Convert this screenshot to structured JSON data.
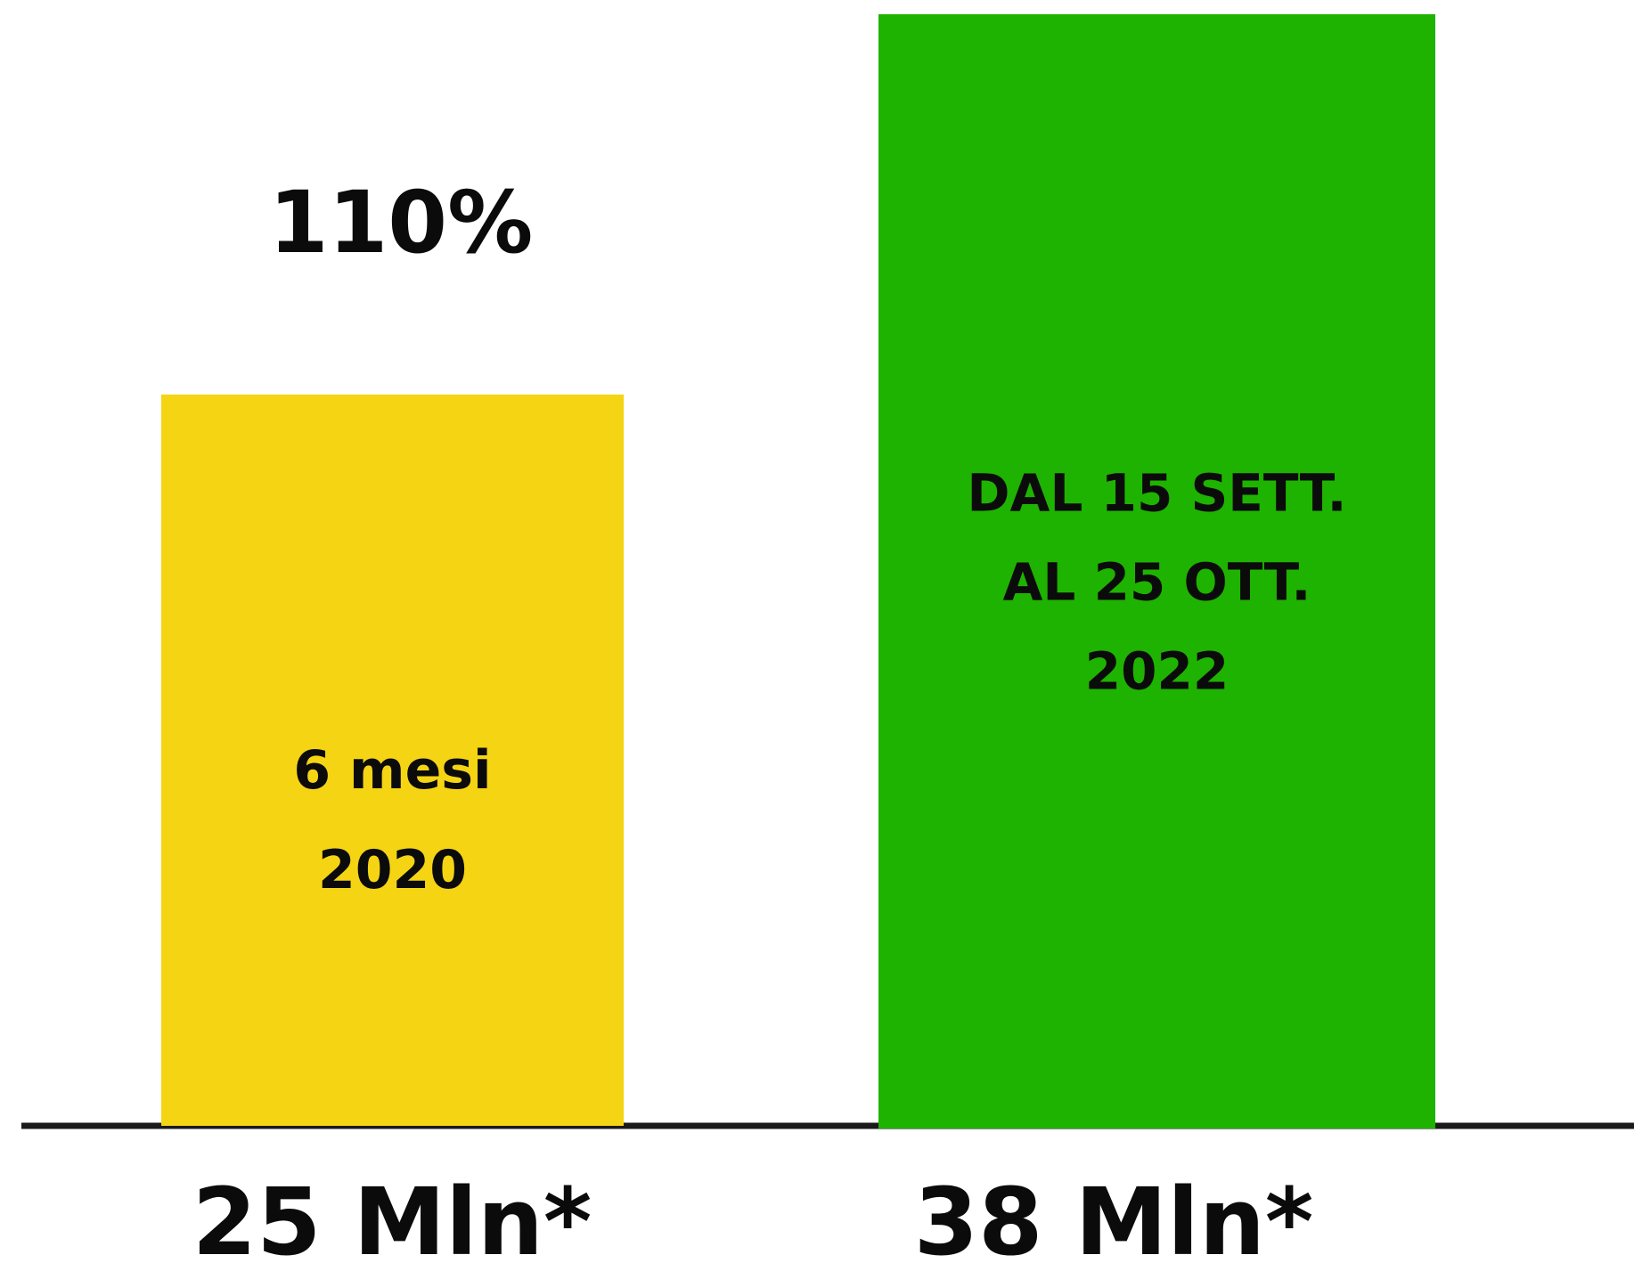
{
  "chart_data": {
    "type": "bar",
    "categories": [
      "25 Mln*",
      "38 Mln*"
    ],
    "values": [
      25,
      38
    ],
    "bar_labels": [
      [
        "6 mesi",
        "2020"
      ],
      [
        "DAL 15 SETT.",
        "AL 25 OTT.",
        "2022"
      ]
    ],
    "annotation": "110%",
    "colors": [
      "#f5d414",
      "#1eb300"
    ],
    "axis_color": "#1a1a1a",
    "ylim": [
      0,
      38
    ],
    "title": "",
    "xlabel": "",
    "ylabel": "",
    "grid": false,
    "legend": "none"
  }
}
